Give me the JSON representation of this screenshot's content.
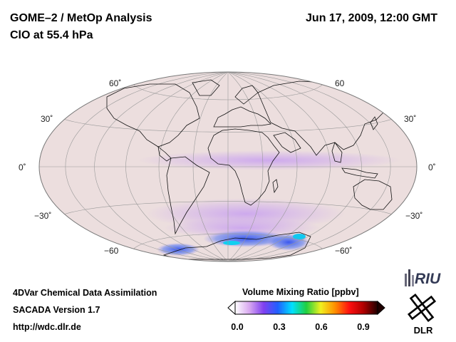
{
  "header": {
    "title": "GOME–2 / MetOp Analysis",
    "subtitle": "ClO at 55.4 hPa",
    "datetime": "Jun 17, 2009, 12:00 GMT"
  },
  "map": {
    "projection": "Hammer-Aitoff",
    "latitude_labels_left": [
      "60˚",
      "30˚",
      "0˚",
      "−30˚",
      "−60"
    ],
    "latitude_labels_right": [
      "60",
      "30˚",
      "0˚",
      "−30˚",
      "−60˚"
    ],
    "colors": {
      "ocean": "#ecdede",
      "enhanced_clo": "#d8b8ee",
      "high_clo": "#5060f0",
      "peak_clo": "#10c8f0",
      "grid": "#9a9a9a",
      "coast": "#111111"
    }
  },
  "footer": {
    "line1": "4DVar Chemical Data Assimilation",
    "line2": "SACADA Version 1.7",
    "line3": "http://wdc.dlr.de"
  },
  "colorbar": {
    "title": "Volume Mixing Ratio [ppbv]",
    "ticks": [
      "0.0",
      "0.3",
      "0.6",
      "0.9"
    ],
    "range": [
      0.0,
      1.0
    ],
    "stops": [
      "#ffffff",
      "#d8a8f0",
      "#8040f0",
      "#2060ff",
      "#00e0ff",
      "#20d040",
      "#f0f020",
      "#ff9000",
      "#ff1010",
      "#b00000",
      "#200000"
    ]
  },
  "logos": {
    "riu": "RIU",
    "dlr": "DLR"
  }
}
